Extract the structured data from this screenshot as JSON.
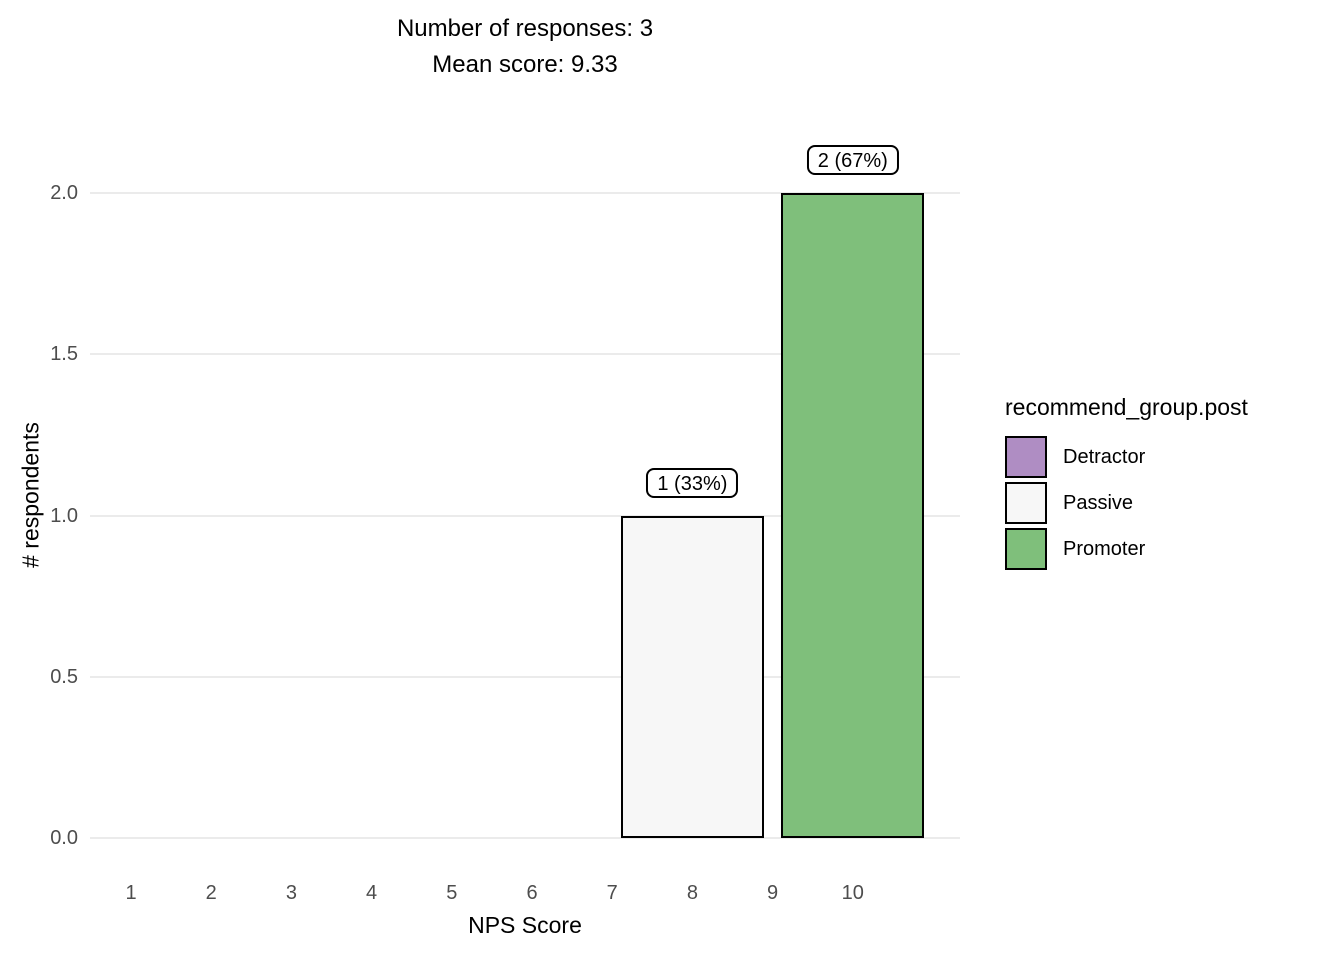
{
  "title": {
    "line1": "Number of responses: 3",
    "line2": "Mean score: 9.33"
  },
  "chart_data": {
    "type": "bar",
    "title": "Number of responses: 3",
    "subtitle": "Mean score: 9.33",
    "xlabel": "NPS Score",
    "ylabel": "# respondents",
    "x_ticks": [
      "1",
      "2",
      "3",
      "4",
      "5",
      "6",
      "7",
      "8",
      "9",
      "10"
    ],
    "y_ticks": [
      "0.0",
      "0.5",
      "1.0",
      "1.5",
      "2.0"
    ],
    "ylim": [
      0,
      2
    ],
    "categories": [
      "1",
      "2",
      "3",
      "4",
      "5",
      "6",
      "7",
      "8",
      "9",
      "10"
    ],
    "values": [
      0,
      0,
      0,
      0,
      0,
      0,
      0,
      1,
      0,
      2
    ],
    "grid": "horizontal-major-only",
    "bars": [
      {
        "x": 8,
        "value": 1,
        "label": "1 (33%)",
        "group": "Passive",
        "color": "#F7F7F7"
      },
      {
        "x": 10,
        "value": 2,
        "label": "2 (67%)",
        "group": "Promoter",
        "color": "#7FBF7B"
      }
    ],
    "legend": {
      "title": "recommend_group.post",
      "position": "right",
      "entries": [
        {
          "label": "Detractor",
          "color": "#AF8DC3"
        },
        {
          "label": "Passive",
          "color": "#F7F7F7"
        },
        {
          "label": "Promoter",
          "color": "#7FBF7B"
        }
      ]
    }
  },
  "colors": {
    "background": "#FFFFFF",
    "gridline": "#EBEBEB",
    "tick_label": "#4D4D4D",
    "text": "#000000",
    "bar_border": "#000000"
  }
}
